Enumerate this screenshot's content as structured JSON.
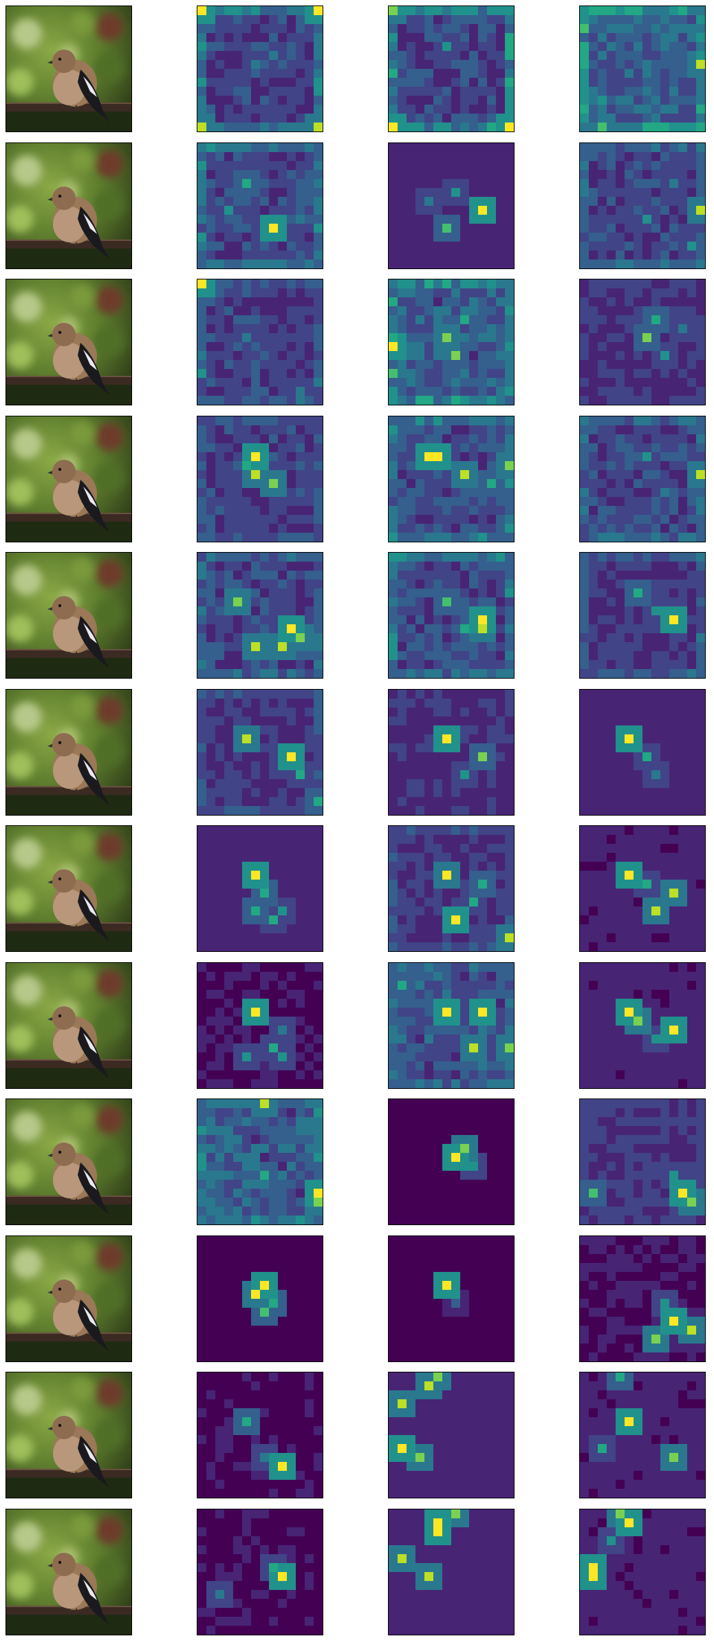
{
  "chart_data": {
    "type": "heatmap",
    "description_rows": 12,
    "columns_per_row": 4,
    "column_kinds": [
      "image",
      "heatmap",
      "heatmap",
      "heatmap"
    ],
    "heatmap_grid": [
      14,
      14
    ],
    "colormap": "viridis",
    "axes": "hidden",
    "rows": [
      {
        "heatmaps": [
          {
            "hotspots": [
              [
                0,
                0,
                1.0
              ],
              [
                0,
                13,
                1.0
              ],
              [
                13,
                0,
                0.9
              ],
              [
                13,
                13,
                0.9
              ],
              [
                6,
                6,
                0.4
              ],
              [
                5,
                8,
                0.35
              ]
            ],
            "border": 0.45,
            "base": 0.18
          },
          {
            "hotspots": [
              [
                0,
                0,
                0.8
              ],
              [
                13,
                0,
                1.0
              ],
              [
                13,
                13,
                1.0
              ],
              [
                7,
                10,
                0.1
              ],
              [
                4,
                6,
                0.45
              ]
            ],
            "border": 0.5,
            "base": 0.2
          },
          {
            "hotspots": [
              [
                5,
                5,
                0.05
              ],
              [
                6,
                7,
                0.35
              ],
              [
                10,
                2,
                0.5
              ],
              [
                6,
                13,
                0.9
              ],
              [
                3,
                9,
                0.4
              ]
            ],
            "border": 0.55,
            "base": 0.3
          }
        ]
      },
      {
        "heatmaps": [
          {
            "hotspots": [
              [
                9,
                8,
                1.0
              ],
              [
                4,
                5,
                0.6
              ],
              [
                7,
                3,
                0.5
              ],
              [
                8,
                11,
                0.4
              ]
            ],
            "border": 0.4,
            "base": 0.22
          },
          {
            "hotspots": [
              [
                7,
                10,
                1.0
              ],
              [
                9,
                6,
                0.7
              ],
              [
                5,
                7,
                0.5
              ],
              [
                6,
                4,
                0.4
              ]
            ],
            "border": 0.1,
            "base": 0.1
          },
          {
            "hotspots": [
              [
                7,
                13,
                0.9
              ],
              [
                8,
                7,
                0.5
              ],
              [
                4,
                10,
                0.4
              ],
              [
                11,
                12,
                0.5
              ]
            ],
            "border": 0.35,
            "base": 0.2
          }
        ]
      },
      {
        "heatmaps": [
          {
            "hotspots": [
              [
                0,
                0,
                1.0
              ],
              [
                6,
                5,
                0.4
              ],
              [
                10,
                0,
                0.5
              ],
              [
                12,
                11,
                0.4
              ]
            ],
            "border": 0.3,
            "base": 0.18
          },
          {
            "hotspots": [
              [
                7,
                0,
                1.0
              ],
              [
                6,
                6,
                0.8
              ],
              [
                8,
                7,
                0.75
              ],
              [
                4,
                8,
                0.55
              ],
              [
                10,
                0,
                0.7
              ]
            ],
            "border": 0.5,
            "base": 0.28
          },
          {
            "hotspots": [
              [
                6,
                7,
                0.75
              ],
              [
                4,
                8,
                0.6
              ],
              [
                8,
                9,
                0.5
              ],
              [
                5,
                11,
                0.4
              ]
            ],
            "border": 0.15,
            "base": 0.14
          }
        ]
      },
      {
        "heatmaps": [
          {
            "hotspots": [
              [
                4,
                6,
                1.0
              ],
              [
                6,
                6,
                0.9
              ],
              [
                7,
                8,
                0.8
              ],
              [
                5,
                5,
                0.55
              ]
            ],
            "border": 0.25,
            "base": 0.18
          },
          {
            "hotspots": [
              [
                4,
                4,
                1.0
              ],
              [
                4,
                5,
                1.0
              ],
              [
                6,
                8,
                0.85
              ],
              [
                5,
                13,
                0.8
              ],
              [
                7,
                11,
                0.6
              ]
            ],
            "border": 0.4,
            "base": 0.22
          },
          {
            "hotspots": [
              [
                6,
                13,
                0.9
              ],
              [
                4,
                7,
                0.45
              ],
              [
                8,
                9,
                0.4
              ]
            ],
            "border": 0.35,
            "base": 0.2
          }
        ]
      },
      {
        "heatmaps": [
          {
            "hotspots": [
              [
                5,
                4,
                0.8
              ],
              [
                8,
                10,
                1.0
              ],
              [
                9,
                11,
                0.8
              ],
              [
                10,
                6,
                0.9
              ],
              [
                10,
                9,
                0.85
              ]
            ],
            "border": 0.35,
            "base": 0.2
          },
          {
            "hotspots": [
              [
                7,
                10,
                1.0
              ],
              [
                8,
                10,
                0.85
              ],
              [
                5,
                6,
                0.7
              ],
              [
                8,
                8,
                0.55
              ]
            ],
            "border": 0.4,
            "base": 0.22
          },
          {
            "hotspots": [
              [
                7,
                10,
                1.0
              ],
              [
                4,
                6,
                0.6
              ],
              [
                6,
                8,
                0.5
              ]
            ],
            "border": 0.3,
            "base": 0.16
          }
        ]
      },
      {
        "heatmaps": [
          {
            "hotspots": [
              [
                5,
                5,
                0.85
              ],
              [
                7,
                10,
                1.0
              ],
              [
                9,
                11,
                0.55
              ],
              [
                12,
                13,
                0.6
              ]
            ],
            "border": 0.25,
            "base": 0.15
          },
          {
            "hotspots": [
              [
                5,
                6,
                1.0
              ],
              [
                7,
                10,
                0.75
              ],
              [
                9,
                8,
                0.45
              ]
            ],
            "border": 0.1,
            "base": 0.12
          },
          {
            "hotspots": [
              [
                5,
                5,
                1.0
              ],
              [
                7,
                7,
                0.55
              ],
              [
                9,
                8,
                0.4
              ]
            ],
            "border": 0.05,
            "base": 0.1
          }
        ]
      },
      {
        "heatmaps": [
          {
            "hotspots": [
              [
                5,
                6,
                1.0
              ],
              [
                7,
                7,
                0.6
              ],
              [
                9,
                6,
                0.6
              ],
              [
                9,
                9,
                0.5
              ],
              [
                10,
                8,
                0.55
              ]
            ],
            "border": 0.05,
            "base": 0.1
          },
          {
            "hotspots": [
              [
                5,
                6,
                0.95
              ],
              [
                10,
                7,
                1.0
              ],
              [
                12,
                13,
                0.9
              ],
              [
                6,
                10,
                0.6
              ],
              [
                8,
                9,
                0.55
              ]
            ],
            "border": 0.25,
            "base": 0.15
          },
          {
            "hotspots": [
              [
                5,
                5,
                1.0
              ],
              [
                7,
                10,
                0.9
              ],
              [
                9,
                8,
                0.85
              ],
              [
                6,
                7,
                0.55
              ]
            ],
            "border": 0.05,
            "base": 0.08
          }
        ]
      },
      {
        "heatmaps": [
          {
            "hotspots": [
              [
                5,
                6,
                1.0
              ],
              [
                9,
                8,
                0.55
              ],
              [
                10,
                5,
                0.5
              ],
              [
                10,
                9,
                0.5
              ],
              [
                7,
                9,
                0.4
              ]
            ],
            "border": 0.0,
            "base": 0.05
          },
          {
            "hotspots": [
              [
                5,
                6,
                1.0
              ],
              [
                5,
                10,
                1.0
              ],
              [
                4,
                7,
                0.5
              ],
              [
                9,
                9,
                0.85
              ],
              [
                9,
                13,
                0.8
              ],
              [
                2,
                1,
                0.6
              ]
            ],
            "border": 0.35,
            "base": 0.25
          },
          {
            "hotspots": [
              [
                5,
                5,
                1.0
              ],
              [
                6,
                6,
                0.8
              ],
              [
                7,
                10,
                1.0
              ],
              [
                8,
                8,
                0.5
              ]
            ],
            "border": 0.05,
            "base": 0.08
          }
        ]
      },
      {
        "heatmaps": [
          {
            "hotspots": [
              [
                0,
                7,
                0.9
              ],
              [
                10,
                13,
                1.0
              ],
              [
                11,
                13,
                0.8
              ],
              [
                8,
                7,
                0.6
              ]
            ],
            "border": 0.4,
            "base": 0.28
          },
          {
            "hotspots": [
              [
                6,
                7,
                1.0
              ],
              [
                5,
                8,
                0.8
              ],
              [
                7,
                9,
                0.5
              ]
            ],
            "border": 0.0,
            "base": 0.02
          },
          {
            "hotspots": [
              [
                10,
                1,
                0.7
              ],
              [
                10,
                11,
                1.0
              ],
              [
                11,
                12,
                0.8
              ],
              [
                8,
                10,
                0.5
              ]
            ],
            "border": 0.2,
            "base": 0.15
          }
        ]
      },
      {
        "heatmaps": [
          {
            "hotspots": [
              [
                5,
                7,
                1.0
              ],
              [
                6,
                6,
                0.95
              ],
              [
                8,
                7,
                0.7
              ],
              [
                7,
                8,
                0.6
              ]
            ],
            "border": 0.0,
            "base": 0.03
          },
          {
            "hotspots": [
              [
                5,
                6,
                1.0
              ],
              [
                7,
                7,
                0.3
              ]
            ],
            "border": 0.0,
            "base": 0.01
          },
          {
            "hotspots": [
              [
                9,
                10,
                1.0
              ],
              [
                10,
                12,
                0.85
              ],
              [
                11,
                8,
                0.8
              ],
              [
                7,
                9,
                0.5
              ]
            ],
            "border": 0.0,
            "base": 0.05
          }
        ]
      },
      {
        "heatmaps": [
          {
            "hotspots": [
              [
                5,
                5,
                0.6
              ],
              [
                10,
                9,
                1.0
              ],
              [
                9,
                7,
                0.4
              ]
            ],
            "border": 0.0,
            "base": 0.04
          },
          {
            "hotspots": [
              [
                1,
                4,
                0.9
              ],
              [
                3,
                1,
                0.9
              ],
              [
                8,
                1,
                1.0
              ],
              [
                9,
                3,
                0.8
              ],
              [
                0,
                5,
                0.8
              ]
            ],
            "border": 0.05,
            "base": 0.1
          },
          {
            "hotspots": [
              [
                5,
                5,
                1.0
              ],
              [
                8,
                2,
                0.55
              ],
              [
                9,
                10,
                0.8
              ],
              [
                0,
                4,
                0.6
              ]
            ],
            "border": 0.05,
            "base": 0.08
          }
        ]
      },
      {
        "heatmaps": [
          {
            "hotspots": [
              [
                7,
                9,
                1.0
              ],
              [
                6,
                8,
                0.55
              ],
              [
                9,
                2,
                0.4
              ]
            ],
            "border": 0.0,
            "base": 0.04
          },
          {
            "hotspots": [
              [
                1,
                5,
                1.0
              ],
              [
                2,
                5,
                1.0
              ],
              [
                0,
                7,
                0.8
              ],
              [
                5,
                1,
                0.9
              ],
              [
                7,
                4,
                0.85
              ]
            ],
            "border": 0.05,
            "base": 0.1
          },
          {
            "hotspots": [
              [
                1,
                5,
                1.0
              ],
              [
                6,
                1,
                1.0
              ],
              [
                7,
                1,
                1.0
              ],
              [
                0,
                4,
                0.8
              ],
              [
                3,
                3,
                0.5
              ]
            ],
            "border": 0.05,
            "base": 0.08
          }
        ]
      }
    ]
  }
}
